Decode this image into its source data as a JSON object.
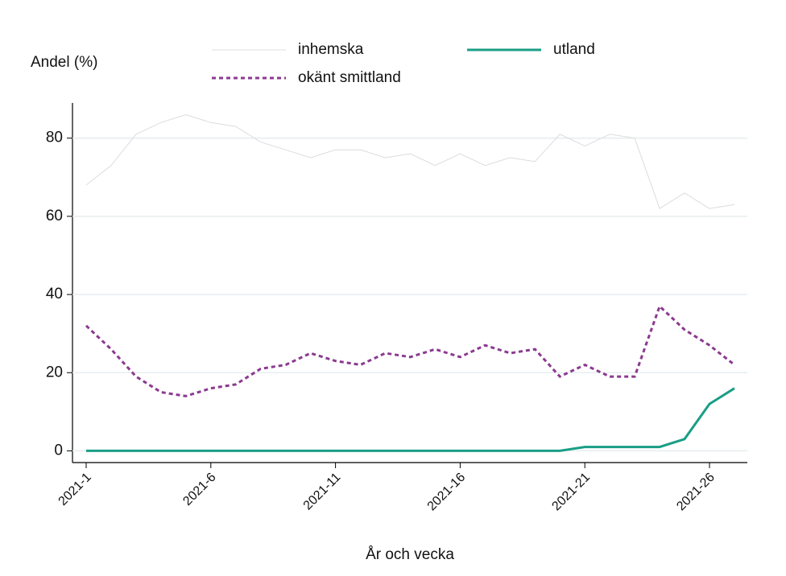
{
  "chart_data": {
    "type": "line",
    "ylabel": "Andel (%)",
    "xlabel": "År och vecka",
    "categories": [
      "2021-1",
      null,
      null,
      null,
      null,
      "2021-6",
      null,
      null,
      null,
      null,
      "2021-11",
      null,
      null,
      null,
      null,
      "2021-16",
      null,
      null,
      null,
      null,
      "2021-21",
      null,
      null,
      null,
      null,
      "2021-26",
      null
    ],
    "series": [
      {
        "name": "inhemska",
        "color": "#dcdcdc",
        "linewidth": 1,
        "linestyle": "solid",
        "values": [
          68,
          73,
          81,
          84,
          86,
          84,
          83,
          79,
          77,
          75,
          77,
          77,
          75,
          76,
          73,
          76,
          73,
          75,
          74,
          81,
          78,
          81,
          80,
          62,
          66,
          62,
          63
        ]
      },
      {
        "name": "utland",
        "color": "#1a9e86",
        "linewidth": 3,
        "linestyle": "solid",
        "values": [
          0,
          0,
          0,
          0,
          0,
          0,
          0,
          0,
          0,
          0,
          0,
          0,
          0,
          0,
          0,
          0,
          0,
          0,
          0,
          0,
          1,
          1,
          1,
          1,
          3,
          12,
          16
        ]
      },
      {
        "name": "okänt smittland",
        "color": "#8b3a8f",
        "linewidth": 3,
        "linestyle": "dashed",
        "values": [
          32,
          26,
          19,
          15,
          14,
          16,
          17,
          21,
          22,
          25,
          23,
          22,
          25,
          24,
          26,
          24,
          27,
          25,
          26,
          19,
          22,
          19,
          19,
          37,
          31,
          27,
          22
        ]
      }
    ],
    "ylim": [
      -3,
      89
    ],
    "yticks": [
      0,
      20,
      40,
      60,
      80
    ],
    "grid": true
  }
}
